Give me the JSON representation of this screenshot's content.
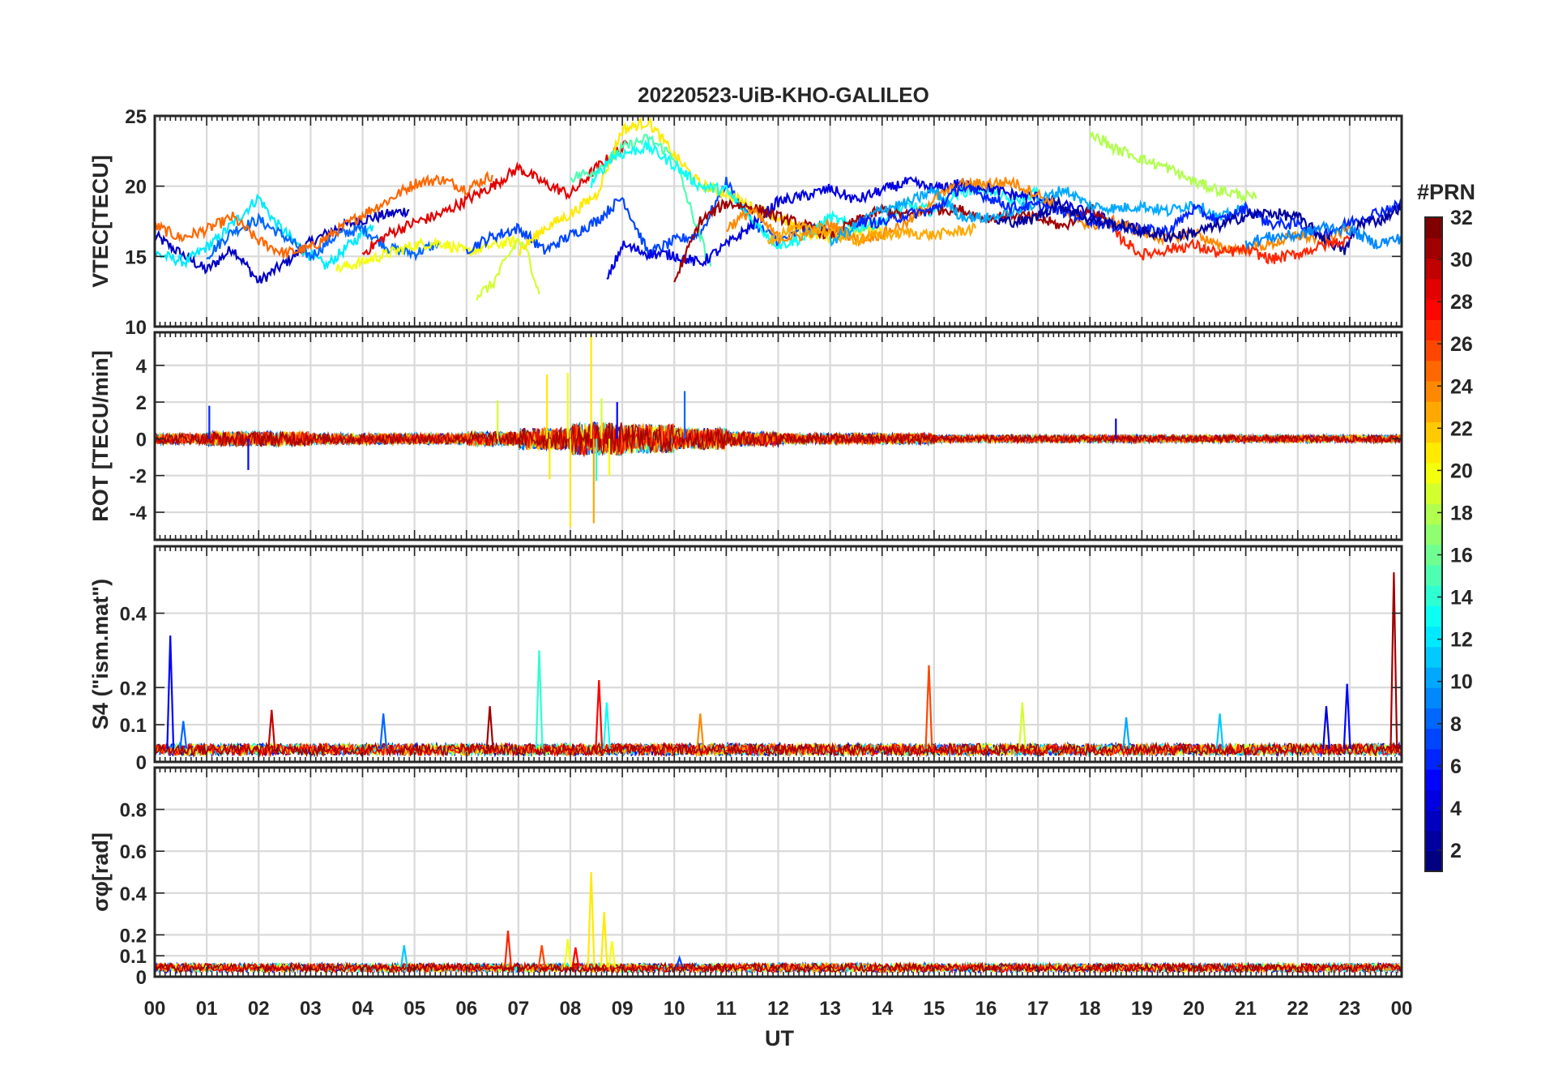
{
  "chart_data": {
    "title": "20220523-UiB-KHO-GALILEO",
    "xlabel": "UT",
    "x_tick_labels": [
      "00",
      "01",
      "02",
      "03",
      "04",
      "05",
      "06",
      "07",
      "08",
      "09",
      "10",
      "11",
      "12",
      "13",
      "14",
      "15",
      "16",
      "17",
      "18",
      "19",
      "20",
      "21",
      "22",
      "23",
      "00"
    ],
    "xlim": [
      0,
      24
    ],
    "grid": true,
    "colorbar": {
      "label": "#PRN",
      "range": [
        1,
        32
      ],
      "tick_labels": [
        "2",
        "4",
        "6",
        "8",
        "10",
        "12",
        "14",
        "16",
        "18",
        "20",
        "22",
        "24",
        "26",
        "28",
        "30",
        "32"
      ],
      "colormap": "jet",
      "colors": [
        "#00008f",
        "#0000ff",
        "#0080ff",
        "#00ffff",
        "#80ff80",
        "#ffff00",
        "#ff8000",
        "#ff0000",
        "#800000"
      ]
    },
    "panels": [
      {
        "type": "line",
        "ylabel": "VTEC[TECU]",
        "ylim": [
          10,
          25
        ],
        "y_ticks": [
          10,
          15,
          20,
          25
        ],
        "y_tick_labels": [
          "10",
          "15",
          "20",
          "25"
        ],
        "series": [
          {
            "prn": 3,
            "x": [
              0,
              0.5,
              1,
              1.5,
              2,
              2.5,
              3,
              3.5,
              4,
              4.5,
              4.9
            ],
            "y": [
              16.5,
              15.2,
              14,
              15.6,
              13.2,
              14.5,
              16,
              17,
              17.6,
              18,
              18.3
            ]
          },
          {
            "prn": 12,
            "x": [
              0,
              0.6,
              1.2,
              2,
              2.3,
              2.8,
              3.3,
              3.8,
              4.2
            ],
            "y": [
              15.2,
              14.6,
              16.2,
              19.2,
              17.5,
              15.6,
              14.3,
              16,
              17.2
            ]
          },
          {
            "prn": 8,
            "x": [
              1,
              1.5,
              2,
              2.5,
              3,
              3.5,
              4,
              4.5,
              5,
              5.5
            ],
            "y": [
              15,
              16.8,
              17.6,
              16.4,
              15,
              16.5,
              17,
              15.6,
              15.2,
              16
            ]
          },
          {
            "prn": 25,
            "x": [
              0,
              0.5,
              1,
              1.5,
              2,
              2.5,
              3,
              3.5,
              4,
              4.5,
              5,
              5.5,
              6,
              6.5
            ],
            "y": [
              17.2,
              16.3,
              16.9,
              17.8,
              16.1,
              15.2,
              15.6,
              16.8,
              18,
              19,
              20.2,
              20.5,
              19.8,
              20.8
            ]
          },
          {
            "prn": 20,
            "x": [
              3.5,
              4,
              4.5,
              5,
              5.5,
              6,
              6.5,
              7
            ],
            "y": [
              14.1,
              14.6,
              15.2,
              15.8,
              16,
              15.3,
              15.8,
              16.1
            ]
          },
          {
            "prn": 29,
            "x": [
              4,
              4.5,
              5,
              5.5,
              6,
              6.5,
              7,
              7.5,
              8,
              8.5,
              9.1
            ],
            "y": [
              15.2,
              16.6,
              17.4,
              18,
              19,
              20,
              21.3,
              20.2,
              19.4,
              21.3,
              23
            ]
          },
          {
            "prn": 7,
            "x": [
              6,
              6.5,
              7,
              7.5,
              8,
              8.5,
              9,
              9.5,
              10,
              10.5,
              11,
              11.5,
              12,
              12.5,
              13
            ],
            "y": [
              15.5,
              16.4,
              17,
              15.4,
              16.5,
              17.5,
              19.2,
              15.2,
              16.1,
              16.6,
              20.3,
              17.4,
              16.1,
              16.8,
              17.2
            ]
          },
          {
            "prn": 19,
            "x": [
              6.2,
              6.5,
              6.8,
              7,
              7.2,
              7.4
            ],
            "y": [
              12.2,
              13,
              15,
              16.2,
              15,
              12.3
            ]
          },
          {
            "prn": 21,
            "x": [
              7,
              7.5,
              8,
              8.5,
              9,
              9.5,
              10,
              10.5,
              11,
              11.5,
              12,
              12.5,
              13,
              13.5,
              14
            ],
            "y": [
              15.3,
              17,
              18,
              19.4,
              24,
              24.6,
              22.2,
              20.1,
              19.5,
              18.5,
              17.8,
              16.6,
              16.4,
              16.8,
              17
            ]
          },
          {
            "prn": 15,
            "x": [
              8,
              8.5,
              9,
              9.5,
              10,
              10.3,
              10.7
            ],
            "y": [
              20.6,
              21.1,
              22.7,
              23.4,
              22.1,
              18.5,
              14.3
            ]
          },
          {
            "prn": 13,
            "x": [
              8.4,
              8.8,
              9.5,
              10,
              10.5,
              11,
              11.5,
              12,
              12.5,
              13,
              13.5,
              14,
              14.5,
              15,
              15.5,
              16,
              16.5,
              17
            ],
            "y": [
              20.2,
              22.1,
              22.8,
              21.5,
              20,
              19.7,
              17.6,
              15.8,
              16.3,
              17.8,
              17,
              17.5,
              18.6,
              18.2,
              19.6,
              19.8,
              18.9,
              19.6
            ]
          },
          {
            "prn": 4,
            "x": [
              8.7,
              9,
              9.5,
              10,
              10.5,
              11,
              11.5,
              12,
              12.5,
              13,
              13.5,
              14,
              14.5,
              15,
              15.5,
              16,
              16.5,
              17,
              17.5,
              18,
              18.5,
              19
            ],
            "y": [
              13.2,
              15.8,
              15.2,
              15.1,
              14.5,
              15.8,
              17.2,
              18.9,
              19.3,
              19.8,
              19,
              19.7,
              20.3,
              19.8,
              20.2,
              19.9,
              19.4,
              19.2,
              18.6,
              18.1,
              17.3,
              16.9
            ]
          },
          {
            "prn": 31,
            "x": [
              10,
              10.5,
              11,
              11.5,
              12,
              12.5,
              13,
              13.5,
              14,
              14.5,
              15,
              15.5,
              16,
              16.5,
              17,
              17.5,
              18,
              18.3
            ],
            "y": [
              13.2,
              17.5,
              18.8,
              18.5,
              17.8,
              17.2,
              16.5,
              17.5,
              18.3,
              17.9,
              18.4,
              18.3,
              17.7,
              18,
              17.7,
              17.1,
              18.5,
              17.6
            ]
          },
          {
            "prn": 24,
            "x": [
              11,
              11.5,
              12,
              12.5,
              13,
              13.5,
              14,
              14.5,
              15,
              15.5,
              16,
              16.5,
              17,
              17.5,
              18,
              18.5,
              19,
              19.5,
              20,
              20.5,
              21,
              21.5,
              22,
              22.5,
              23
            ],
            "y": [
              17,
              18.3,
              16.3,
              16.5,
              17.3,
              16.2,
              16.6,
              17.4,
              19.1,
              20.1,
              20.2,
              20.3,
              19.4,
              18.2,
              17.2,
              17.5,
              16.7,
              16.2,
              16.8,
              15.6,
              15.5,
              15.9,
              16.5,
              16.2,
              17
            ]
          },
          {
            "prn": 23,
            "x": [
              11.8,
              12.2,
              12.6,
              13,
              13.5,
              14,
              14.5,
              15,
              15.5,
              15.8
            ],
            "y": [
              16.2,
              16.8,
              17.1,
              16.6,
              16.2,
              16.5,
              16.7,
              16.5,
              16.8,
              17
            ]
          },
          {
            "prn": 10,
            "x": [
              13,
              13.5,
              14,
              14.5,
              15,
              15.5,
              16,
              16.5,
              17,
              17.5,
              18,
              18.5,
              19,
              19.5,
              20,
              20.5,
              21
            ],
            "y": [
              16,
              17.2,
              18.4,
              18.8,
              19.7,
              17.9,
              17.7,
              18.1,
              18.9,
              19.8,
              18.6,
              18.4,
              18.6,
              18.2,
              18.8,
              17.7,
              18.5
            ]
          },
          {
            "prn": 6,
            "x": [
              13.5,
              14,
              14.5,
              15,
              15.5,
              16,
              16.5,
              17,
              17.5,
              18,
              18.5,
              19,
              19.5,
              20,
              20.5,
              21,
              21.5,
              22,
              22.5,
              23,
              23.5,
              24
            ],
            "y": [
              17.5,
              17.4,
              18,
              18.3,
              19.9,
              19.3,
              18.5,
              18.6,
              18.2,
              17.6,
              17.1,
              16.9,
              16.8,
              18.4,
              17.5,
              18.4,
              17.3,
              17.3,
              16.6,
              17.4,
              18.1,
              18.7
            ]
          },
          {
            "prn": 2,
            "x": [
              16.2,
              16.8,
              17.4,
              18,
              18.6,
              19,
              19.5,
              20,
              20.5,
              21,
              21.5,
              22,
              22.5,
              22.9,
              23.2,
              23.6,
              24
            ],
            "y": [
              17.5,
              17.5,
              18.7,
              17.6,
              17.2,
              16.8,
              16.4,
              16.7,
              17.2,
              17.9,
              18.1,
              17.8,
              16.3,
              15.4,
              17.4,
              17.6,
              18.6
            ]
          },
          {
            "prn": 18,
            "x": [
              18,
              18.2,
              18.5,
              18.8,
              19,
              19.5,
              20,
              20.5,
              21,
              21.2
            ],
            "y": [
              23.5,
              23.4,
              22.6,
              22.3,
              21.9,
              21.3,
              20.3,
              19.7,
              19.3,
              19.1
            ]
          },
          {
            "prn": 27,
            "x": [
              18.5,
              19,
              19.5,
              20,
              20.5,
              21,
              21.5,
              22,
              22.5,
              23
            ],
            "y": [
              16.6,
              15.1,
              15.5,
              15.8,
              15.2,
              15.5,
              14.8,
              15.2,
              15.8,
              16.2
            ]
          },
          {
            "prn": 9,
            "x": [
              21,
              21.5,
              22,
              22.5,
              23,
              23.5,
              24
            ],
            "y": [
              16,
              16.4,
              16.5,
              17.1,
              16.9,
              15.9,
              16.3
            ]
          }
        ]
      },
      {
        "type": "line",
        "ylabel": "ROT [TECU/min]",
        "ylim": [
          -5.5,
          5.8
        ],
        "y_ticks": [
          -4,
          -2,
          0,
          2,
          4
        ],
        "y_tick_labels": [
          "-4",
          "-2",
          "0",
          "2",
          "4"
        ],
        "typical_abs_by_hour": [
          0.3,
          0.4,
          0.4,
          0.3,
          0.3,
          0.3,
          0.4,
          0.6,
          0.9,
          0.8,
          0.6,
          0.4,
          0.3,
          0.3,
          0.3,
          0.2,
          0.2,
          0.2,
          0.2,
          0.2,
          0.2,
          0.2,
          0.2,
          0.2,
          0.2
        ],
        "spikes": [
          {
            "prn": 6,
            "x": 1.05,
            "y": 1.8
          },
          {
            "prn": 5,
            "x": 1.8,
            "y": -1.7
          },
          {
            "prn": 19,
            "x": 6.6,
            "y": 2.1
          },
          {
            "prn": 21,
            "x": 7.55,
            "y": 3.5
          },
          {
            "prn": 21,
            "x": 7.6,
            "y": -2.2
          },
          {
            "prn": 20,
            "x": 7.95,
            "y": 3.6
          },
          {
            "prn": 21,
            "x": 8.0,
            "y": -4.8
          },
          {
            "prn": 21,
            "x": 8.4,
            "y": 5.7
          },
          {
            "prn": 23,
            "x": 8.45,
            "y": -4.6
          },
          {
            "prn": 19,
            "x": 8.6,
            "y": 2.2
          },
          {
            "prn": 14,
            "x": 8.5,
            "y": -2.3
          },
          {
            "prn": 20,
            "x": 8.75,
            "y": -2.0
          },
          {
            "prn": 5,
            "x": 8.9,
            "y": 2.0
          },
          {
            "prn": 8,
            "x": 10.2,
            "y": 2.6
          },
          {
            "prn": 4,
            "x": 18.5,
            "y": 1.1
          }
        ]
      },
      {
        "type": "line",
        "ylabel": "S4 (\"ism.mat\")",
        "ylim": [
          0,
          0.58
        ],
        "y_ticks": [
          0,
          0.1,
          0.2,
          0.4
        ],
        "y_tick_labels": [
          "0",
          "0.1",
          "0.2",
          "0.4"
        ],
        "baseline": 0.035,
        "spikes": [
          {
            "prn": 5,
            "x": 0.3,
            "y": 0.34
          },
          {
            "prn": 8,
            "x": 0.55,
            "y": 0.11
          },
          {
            "prn": 30,
            "x": 2.25,
            "y": 0.14
          },
          {
            "prn": 8,
            "x": 4.4,
            "y": 0.13
          },
          {
            "prn": 31,
            "x": 6.45,
            "y": 0.15
          },
          {
            "prn": 14,
            "x": 7.4,
            "y": 0.3
          },
          {
            "prn": 28,
            "x": 8.55,
            "y": 0.22
          },
          {
            "prn": 13,
            "x": 8.7,
            "y": 0.16
          },
          {
            "prn": 24,
            "x": 10.5,
            "y": 0.13
          },
          {
            "prn": 26,
            "x": 14.9,
            "y": 0.26
          },
          {
            "prn": 19,
            "x": 16.7,
            "y": 0.16
          },
          {
            "prn": 10,
            "x": 18.7,
            "y": 0.12
          },
          {
            "prn": 11,
            "x": 20.5,
            "y": 0.13
          },
          {
            "prn": 4,
            "x": 22.55,
            "y": 0.15
          },
          {
            "prn": 5,
            "x": 22.95,
            "y": 0.21
          },
          {
            "prn": 31,
            "x": 23.85,
            "y": 0.51
          }
        ]
      },
      {
        "type": "line",
        "ylabel": "σφ[rad]",
        "ylim": [
          0,
          1.0
        ],
        "y_ticks": [
          0,
          0.1,
          0.2,
          0.4,
          0.6,
          0.8
        ],
        "y_tick_labels": [
          "0",
          "0.1",
          "0.2",
          "0.4",
          "0.6",
          "0.8"
        ],
        "baseline": 0.045,
        "spikes": [
          {
            "prn": 11,
            "x": 4.8,
            "y": 0.15
          },
          {
            "prn": 27,
            "x": 6.8,
            "y": 0.22
          },
          {
            "prn": 26,
            "x": 7.45,
            "y": 0.15
          },
          {
            "prn": 20,
            "x": 7.95,
            "y": 0.18
          },
          {
            "prn": 28,
            "x": 8.1,
            "y": 0.14
          },
          {
            "prn": 21,
            "x": 8.4,
            "y": 0.5
          },
          {
            "prn": 21,
            "x": 8.65,
            "y": 0.31
          },
          {
            "prn": 20,
            "x": 8.8,
            "y": 0.17
          },
          {
            "prn": 7,
            "x": 10.1,
            "y": 0.09
          }
        ]
      }
    ]
  }
}
